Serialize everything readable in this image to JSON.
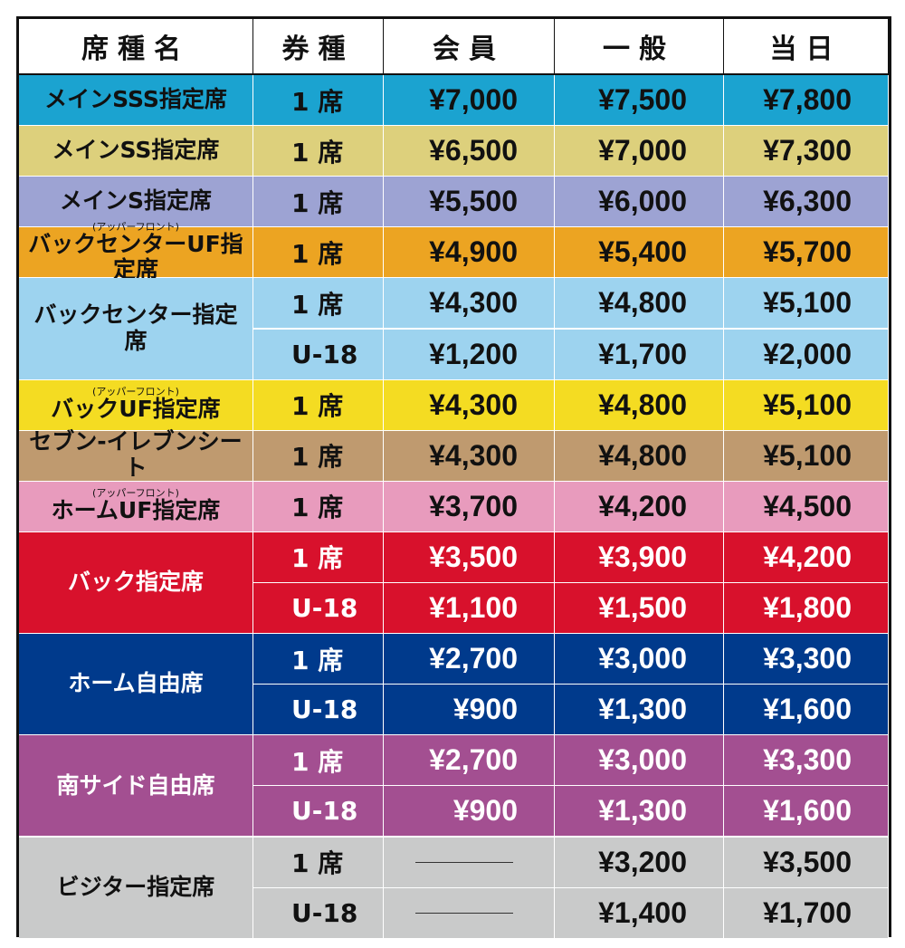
{
  "table": {
    "header": [
      "席種名",
      "券種",
      "会員",
      "一般",
      "当日"
    ],
    "sections": [
      {
        "name": "メインSSS指定席",
        "color": "#1ba3d0",
        "text_color": "#111111",
        "tickets": [
          [
            "1 席",
            "¥7,000",
            "¥7,500",
            "¥7,800"
          ]
        ]
      },
      {
        "name": "メインSS指定席",
        "color": "#ddd07c",
        "text_color": "#111111",
        "tickets": [
          [
            "1 席",
            "¥6,500",
            "¥7,000",
            "¥7,300"
          ]
        ]
      },
      {
        "name": "メインS指定席",
        "color": "#9da3d3",
        "text_color": "#111111",
        "tickets": [
          [
            "1 席",
            "¥5,500",
            "¥6,000",
            "¥6,300"
          ]
        ]
      },
      {
        "note": "(アッパーフロント)",
        "name": "バックセンターUF指定席",
        "color": "#eca422",
        "text_color": "#111111",
        "tickets": [
          [
            "1 席",
            "¥4,900",
            "¥5,400",
            "¥5,700"
          ]
        ]
      },
      {
        "name": "バックセンター指定席",
        "color": "#9dd3ef",
        "text_color": "#111111",
        "tickets": [
          [
            "1 席",
            "¥4,300",
            "¥4,800",
            "¥5,100"
          ],
          [
            "U-18",
            "¥1,200",
            "¥1,700",
            "¥2,000"
          ]
        ]
      },
      {
        "note": "(アッパーフロント)",
        "name": "バックUF指定席",
        "color": "#f4dc22",
        "text_color": "#111111",
        "tickets": [
          [
            "1 席",
            "¥4,300",
            "¥4,800",
            "¥5,100"
          ]
        ]
      },
      {
        "name": "セブン-イレブンシート",
        "color": "#bf9a6f",
        "text_color": "#111111",
        "tickets": [
          [
            "1 席",
            "¥4,300",
            "¥4,800",
            "¥5,100"
          ]
        ]
      },
      {
        "note": "(アッパーフロント)",
        "name": "ホームUF指定席",
        "color": "#e89bbd",
        "text_color": "#111111",
        "tickets": [
          [
            "1 席",
            "¥3,700",
            "¥4,200",
            "¥4,500"
          ]
        ]
      },
      {
        "name": "バック指定席",
        "color": "#d8112c",
        "text_color": "#ffffff",
        "tickets": [
          [
            "1 席",
            "¥3,500",
            "¥3,900",
            "¥4,200"
          ],
          [
            "U-18",
            "¥1,100",
            "¥1,500",
            "¥1,800"
          ]
        ]
      },
      {
        "name": "ホーム自由席",
        "color": "#003a8c",
        "text_color": "#ffffff",
        "tickets": [
          [
            "1 席",
            "¥2,700",
            "¥3,000",
            "¥3,300"
          ],
          [
            "U-18",
            "¥900",
            "¥1,300",
            "¥1,600"
          ]
        ]
      },
      {
        "name": "南サイド自由席",
        "color": "#a34f91",
        "text_color": "#ffffff",
        "tickets": [
          [
            "1 席",
            "¥2,700",
            "¥3,000",
            "¥3,300"
          ],
          [
            "U-18",
            "¥900",
            "¥1,300",
            "¥1,600"
          ]
        ]
      },
      {
        "name": "ビジター指定席",
        "color": "#c9caca",
        "text_color": "#111111",
        "tickets": [
          [
            "1 席",
            null,
            "¥3,200",
            "¥3,500"
          ],
          [
            "U-18",
            null,
            "¥1,400",
            "¥1,700"
          ]
        ]
      }
    ]
  }
}
